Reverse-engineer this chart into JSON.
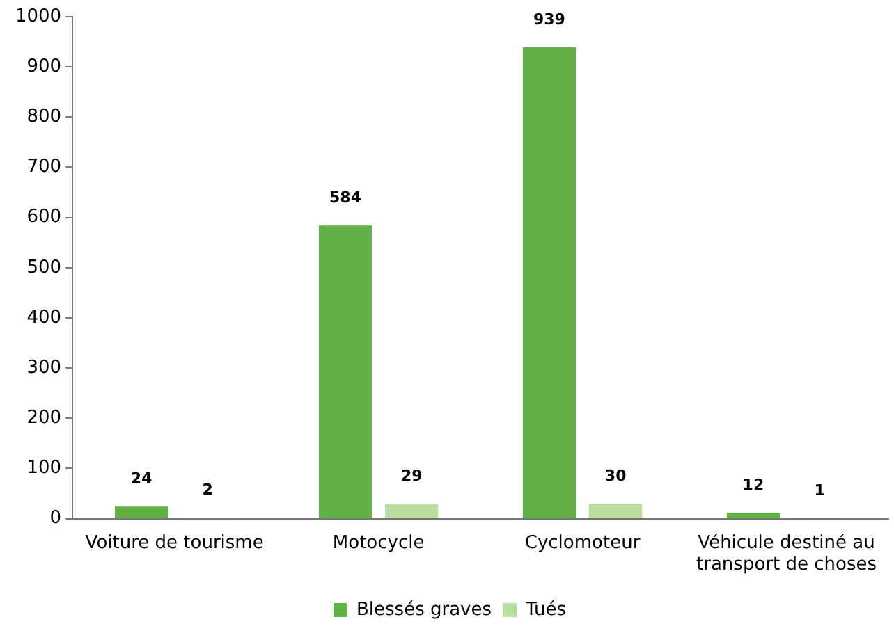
{
  "chart_data": {
    "type": "bar",
    "categories": [
      "Voiture de tourisme",
      "Motocycle",
      "Cyclomoteur",
      "Véhicule destiné au transport de choses"
    ],
    "series": [
      {
        "name": "Blessés graves",
        "color": "#62b046",
        "values": [
          24,
          584,
          939,
          12
        ]
      },
      {
        "name": "Tués",
        "color": "#b9dea0",
        "values": [
          2,
          29,
          30,
          1
        ]
      }
    ],
    "ylim": [
      0,
      1000
    ],
    "yticks": [
      0,
      100,
      200,
      300,
      400,
      500,
      600,
      700,
      800,
      900,
      1000
    ],
    "grid": false,
    "legend": "bottom",
    "data_labels": true
  }
}
